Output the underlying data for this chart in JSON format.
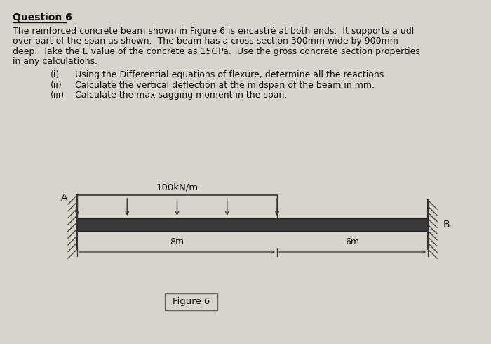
{
  "title": "Question 6",
  "bg_color": "#d8d4cc",
  "text_color": "#111111",
  "para_line1": "The reinforced concrete beam shown in Figure 6 is encastré at both ends.  It supports a udl",
  "para_line2": "over part of the span as shown.  The beam has a cross section 300mm wide by 900mm",
  "para_line3": "deep.  Take the E value of the concrete as 15GPa.  Use the gross concrete section properties",
  "para_line4": "in any calculations.",
  "item_i": "(i)",
  "item_i_text": "Using the Differential equations of flexure, determine all the reactions",
  "item_ii": "(ii)",
  "item_ii_text": "Calculate the vertical deflection at the midspan of the beam in mm.",
  "item_iii": "(iii)",
  "item_iii_text": "Calculate the max sagging moment in the span.",
  "udl_label": "100kN/m",
  "label_A": "A",
  "label_B": "B",
  "dim1_label": "8m",
  "dim2_label": "6m",
  "figure_label": "Figure 6",
  "beam_color": "#3a3a3a",
  "hatch_color": "#444444",
  "line_color": "#333333",
  "title_fontsize": 10.0,
  "body_fontsize": 9.0
}
